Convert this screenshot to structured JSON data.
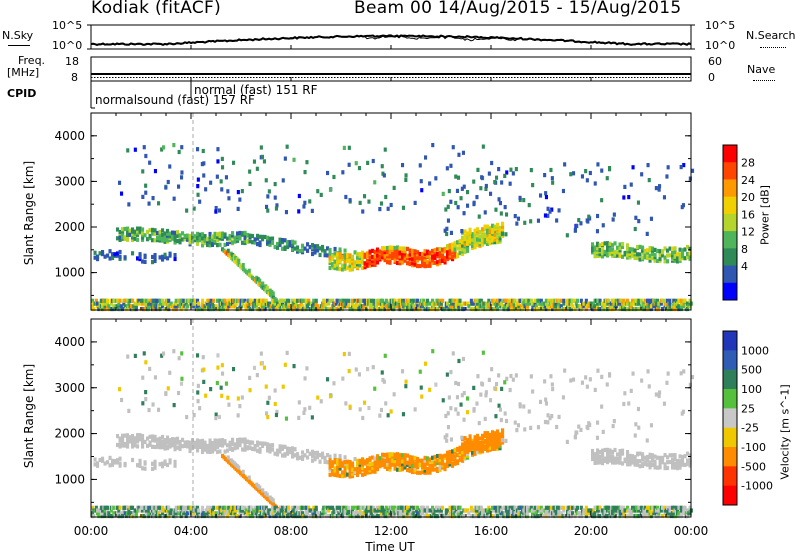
{
  "header": {
    "station": "Kodiak (fitACF)",
    "beam_dates": "Beam 00  14/Aug/2015 - 15/Aug/2015"
  },
  "strips": {
    "nsky_label": "N.Sky",
    "nsearch_label": "N.Search",
    "noise_left_ticks": [
      "10^5",
      "10^0"
    ],
    "noise_right_ticks": [
      "10^5",
      "10^0"
    ],
    "freq_label_top": "Freq.",
    "freq_label_bottom": "[MHz]",
    "freq_ticks": [
      "18",
      "8"
    ],
    "nave_label": "Nave",
    "nave_ticks": [
      "60",
      "0"
    ],
    "cpid_label": "CPID",
    "cpid_entries": [
      "normal (fast)  151 RF",
      "normalsound (fast) 157 RF"
    ]
  },
  "colors": {
    "power_scale": [
      "#0000ff",
      "#2f56b0",
      "#2e8b57",
      "#4fb55a",
      "#b5d52c",
      "#f0d000",
      "#ff9900",
      "#ff4500",
      "#ff0000"
    ],
    "velocity_scale": [
      "#2136b8",
      "#2f5db5",
      "#2f7f5a",
      "#55c03c",
      "#c8c8c8",
      "#c8c8c8",
      "#f0c800",
      "#ff8c00",
      "#ff3300",
      "#ff0000"
    ],
    "ground_scatter": "#c0c0c0"
  },
  "chart_data": [
    {
      "type": "heatmap",
      "name": "Power",
      "ylabel": "Slant Range [km]",
      "colorbar_label": "Power [dB]",
      "colorbar_ticks": [
        "28",
        "24",
        "20",
        "16",
        "12",
        "8",
        "4"
      ],
      "x_ticks": [
        "00:00",
        "04:00",
        "08:00",
        "12:00",
        "16:00",
        "20:00",
        "00:00"
      ],
      "xlim_hours": [
        0,
        24
      ],
      "y_ticks": [
        "4000",
        "3000",
        "2000",
        "1000"
      ],
      "ylim_km": [
        180,
        4500
      ]
    },
    {
      "type": "heatmap",
      "name": "Velocity",
      "xlabel": "Time UT",
      "ylabel": "Slant Range [km]",
      "colorbar_label": "Velocity [m s^-1]",
      "colorbar_ticks": [
        "1000",
        "500",
        "100",
        "25",
        "-25",
        "-100",
        "-500",
        "-1000"
      ],
      "x_ticks": [
        "00:00",
        "04:00",
        "08:00",
        "12:00",
        "16:00",
        "20:00",
        "00:00"
      ],
      "xlim_hours": [
        0,
        24
      ],
      "y_ticks": [
        "4000",
        "3000",
        "2000",
        "1000"
      ],
      "ylim_km": [
        180,
        4500
      ]
    }
  ]
}
